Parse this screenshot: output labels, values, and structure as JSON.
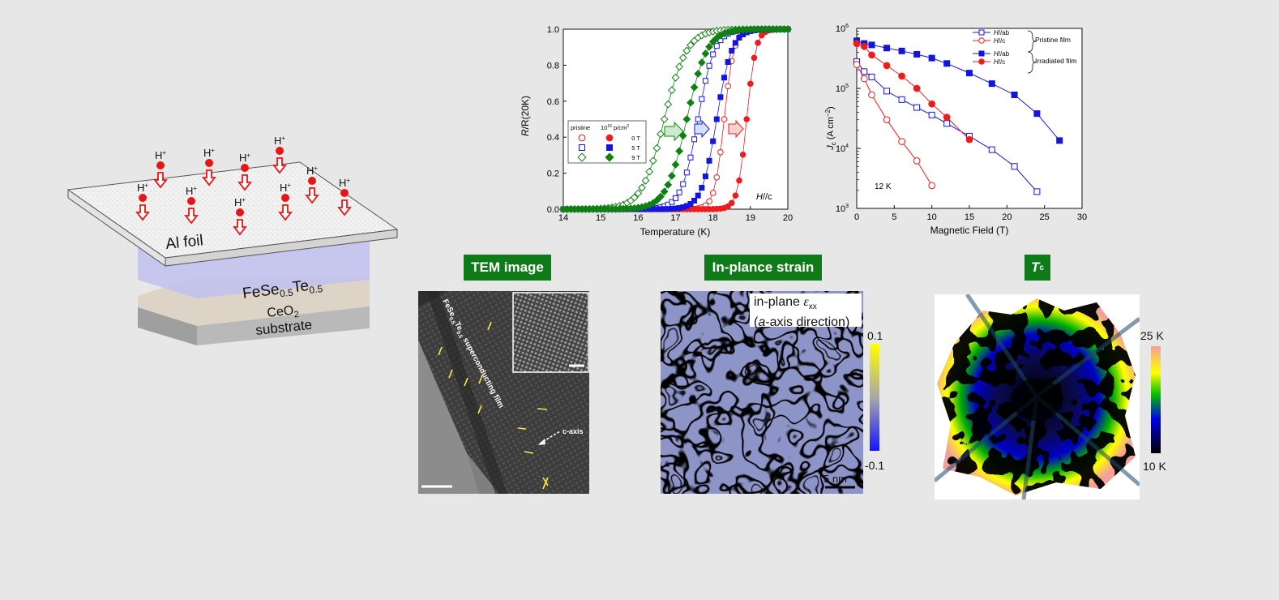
{
  "schematic": {
    "ion_label": "H",
    "ion_charge": "+",
    "foil_label": "Al foil",
    "film_label_base": "FeSe",
    "film_sub1": "0.5",
    "film_mid": "Te",
    "film_sub2": "0.5",
    "buffer_label_base": "CeO",
    "buffer_sub": "2",
    "substrate_label": "substrate"
  },
  "panels": {
    "tem": {
      "title": "TEM image",
      "film_text_a": "FeSe",
      "film_text_sub1": "0.5",
      "film_text_b": "Te",
      "film_text_sub2": "0.5",
      "film_text_c": " superconducting film",
      "axis_label": "c-axis"
    },
    "strain": {
      "title": "In-plance strain",
      "note_line1_a": "in-plane ",
      "note_line1_sym": "ε",
      "note_line1_sub": "xx",
      "note_line2_a": "(",
      "note_line2_ital": "a",
      "note_line2_b": "-axis direction)",
      "cbar_max": "0.1",
      "cbar_min": "-0.1",
      "scale_label": "5 nm",
      "colors": {
        "high": "#ffff00",
        "mid": "#b0b0b0",
        "low": "#1e2ee6"
      }
    },
    "tc": {
      "title_sym": "T",
      "title_sub": "c",
      "cbar_max": "25 K",
      "cbar_min": "10 K",
      "colors": {
        "high": "#f4a09a",
        "mid1": "#ffff00",
        "mid2": "#00b000",
        "mid3": "#0000c0",
        "low": "#000000"
      }
    }
  },
  "chart_data": [
    {
      "type": "scatter",
      "xlabel": "Temperature (K)",
      "ylabel_ital": "R",
      "ylabel_rest": "/R(20K)",
      "xlim": [
        14,
        20
      ],
      "ylim": [
        0,
        1.0
      ],
      "xticks": [
        "14",
        "15",
        "16",
        "17",
        "18",
        "19",
        "20"
      ],
      "yticks": [
        "0.0",
        "0.2",
        "0.4",
        "0.6",
        "0.8",
        "1.0"
      ],
      "annotation_ital": "H",
      "annotation_rest": "//c",
      "legend": {
        "header_pristine": "pristine",
        "header_dose_a": "10",
        "header_dose_exp": "16",
        "header_dose_b": " p/cm",
        "header_dose_exp2": "2",
        "fields": [
          "0 T",
          "5 T",
          "9 T"
        ]
      },
      "colors": {
        "0T": "#ee1c1c",
        "5T": "#1515e0",
        "9T": "#118011"
      },
      "series": [
        {
          "name": "0 T",
          "marker": "circle",
          "filled": false,
          "tc": 18.3,
          "width": 0.13
        },
        {
          "name": "0 T",
          "marker": "circle",
          "filled": true,
          "tc": 18.9,
          "width": 0.12
        },
        {
          "name": "5 T",
          "marker": "square",
          "filled": false,
          "tc": 17.6,
          "width": 0.22
        },
        {
          "name": "5 T",
          "marker": "square",
          "filled": true,
          "tc": 18.1,
          "width": 0.2
        },
        {
          "name": "9 T",
          "marker": "diamond",
          "filled": false,
          "tc": 16.7,
          "width": 0.3
        },
        {
          "name": "9 T",
          "marker": "diamond",
          "filled": true,
          "tc": 17.3,
          "width": 0.27
        }
      ]
    },
    {
      "type": "line",
      "xlabel": "Magnetic Field (T)",
      "ylabel_a": "J",
      "ylabel_sub": "c",
      "ylabel_b": " (A cm",
      "ylabel_exp": "−2",
      "ylabel_c": ")",
      "xlim": [
        0,
        30
      ],
      "ylim": [
        1000,
        1000000
      ],
      "xticks": [
        "0",
        "5",
        "10",
        "15",
        "20",
        "25",
        "30"
      ],
      "yticks": [
        {
          "base": "10",
          "exp": "3"
        },
        {
          "base": "10",
          "exp": "4"
        },
        {
          "base": "10",
          "exp": "5"
        },
        {
          "base": "10",
          "exp": "6"
        }
      ],
      "annotation": "12 K",
      "legend_group_1": "Pristine film",
      "legend_group_2": "Irradiated film",
      "series": [
        {
          "name_ital": "H",
          "name_rest": "//ab",
          "color": "#1515e0",
          "marker": "square",
          "filled": false,
          "x": [
            0,
            1,
            2,
            4,
            6,
            8,
            10,
            12,
            15,
            18,
            21,
            24
          ],
          "y": [
            280000,
            190000,
            155000,
            90000,
            65000,
            48000,
            36000,
            26000,
            16000,
            9500,
            5000,
            1900
          ]
        },
        {
          "name_ital": "H",
          "name_rest": "//c",
          "color": "#ee1c1c",
          "marker": "circle",
          "filled": false,
          "x": [
            0,
            1,
            2,
            4,
            6,
            8,
            10
          ],
          "y": [
            250000,
            145000,
            78000,
            30000,
            13000,
            6200,
            2400
          ]
        },
        {
          "name_ital": "H",
          "name_rest": "//ab",
          "color": "#1515e0",
          "marker": "square",
          "filled": true,
          "x": [
            0,
            1,
            2,
            4,
            6,
            8,
            10,
            12,
            15,
            18,
            21,
            24,
            27
          ],
          "y": [
            620000,
            560000,
            530000,
            470000,
            420000,
            370000,
            320000,
            260000,
            180000,
            120000,
            78000,
            38000,
            13500
          ]
        },
        {
          "name_ital": "H",
          "name_rest": "//c",
          "color": "#ee1c1c",
          "marker": "circle",
          "filled": true,
          "x": [
            0,
            1,
            2,
            4,
            6,
            8,
            10,
            12,
            15
          ],
          "y": [
            560000,
            500000,
            360000,
            240000,
            160000,
            100000,
            55000,
            33000,
            14000
          ]
        }
      ]
    }
  ]
}
